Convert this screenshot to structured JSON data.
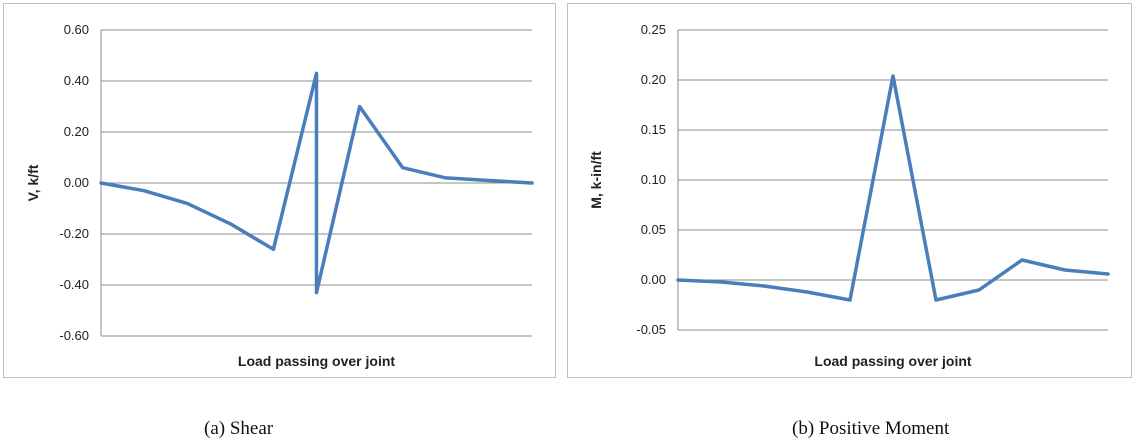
{
  "chart_data": [
    {
      "type": "line",
      "panel": "shear",
      "ylabel": "V,  k/ft",
      "xlabel": "Load passing over joint",
      "ylim": [
        -0.6,
        0.6
      ],
      "yticks": [
        "0.60",
        "0.40",
        "0.20",
        "0.00",
        "-0.20",
        "-0.40",
        "-0.60"
      ],
      "ytick_values": [
        0.6,
        0.4,
        0.2,
        0.0,
        -0.2,
        -0.4,
        -0.6
      ],
      "xlim": [
        0,
        10
      ],
      "grid": true,
      "color": "#4a7ebb",
      "x": [
        0,
        1,
        2,
        3,
        4,
        5,
        5,
        6,
        7,
        8,
        9,
        10
      ],
      "values": [
        0.0,
        -0.03,
        -0.08,
        -0.16,
        -0.26,
        0.43,
        -0.43,
        0.3,
        0.06,
        0.02,
        0.01,
        0.0
      ]
    },
    {
      "type": "line",
      "panel": "positive-moment",
      "ylabel": "M, k-in/ft",
      "xlabel": "Load passing over joint",
      "ylim": [
        -0.05,
        0.25
      ],
      "yticks": [
        "0.25",
        "0.20",
        "0.15",
        "0.10",
        "0.05",
        "0.00",
        "-0.05"
      ],
      "ytick_values": [
        0.25,
        0.2,
        0.15,
        0.1,
        0.05,
        0.0,
        -0.05
      ],
      "xlim": [
        0,
        10
      ],
      "grid": true,
      "color": "#4a7ebb",
      "x": [
        0,
        1,
        2,
        3,
        4,
        5,
        6,
        7,
        8,
        9,
        10
      ],
      "values": [
        0.0,
        -0.002,
        -0.006,
        -0.012,
        -0.02,
        0.204,
        -0.02,
        -0.01,
        0.02,
        0.01,
        0.006
      ]
    }
  ],
  "captions": {
    "a": "(a) Shear",
    "b": "(b) Positive Moment"
  }
}
